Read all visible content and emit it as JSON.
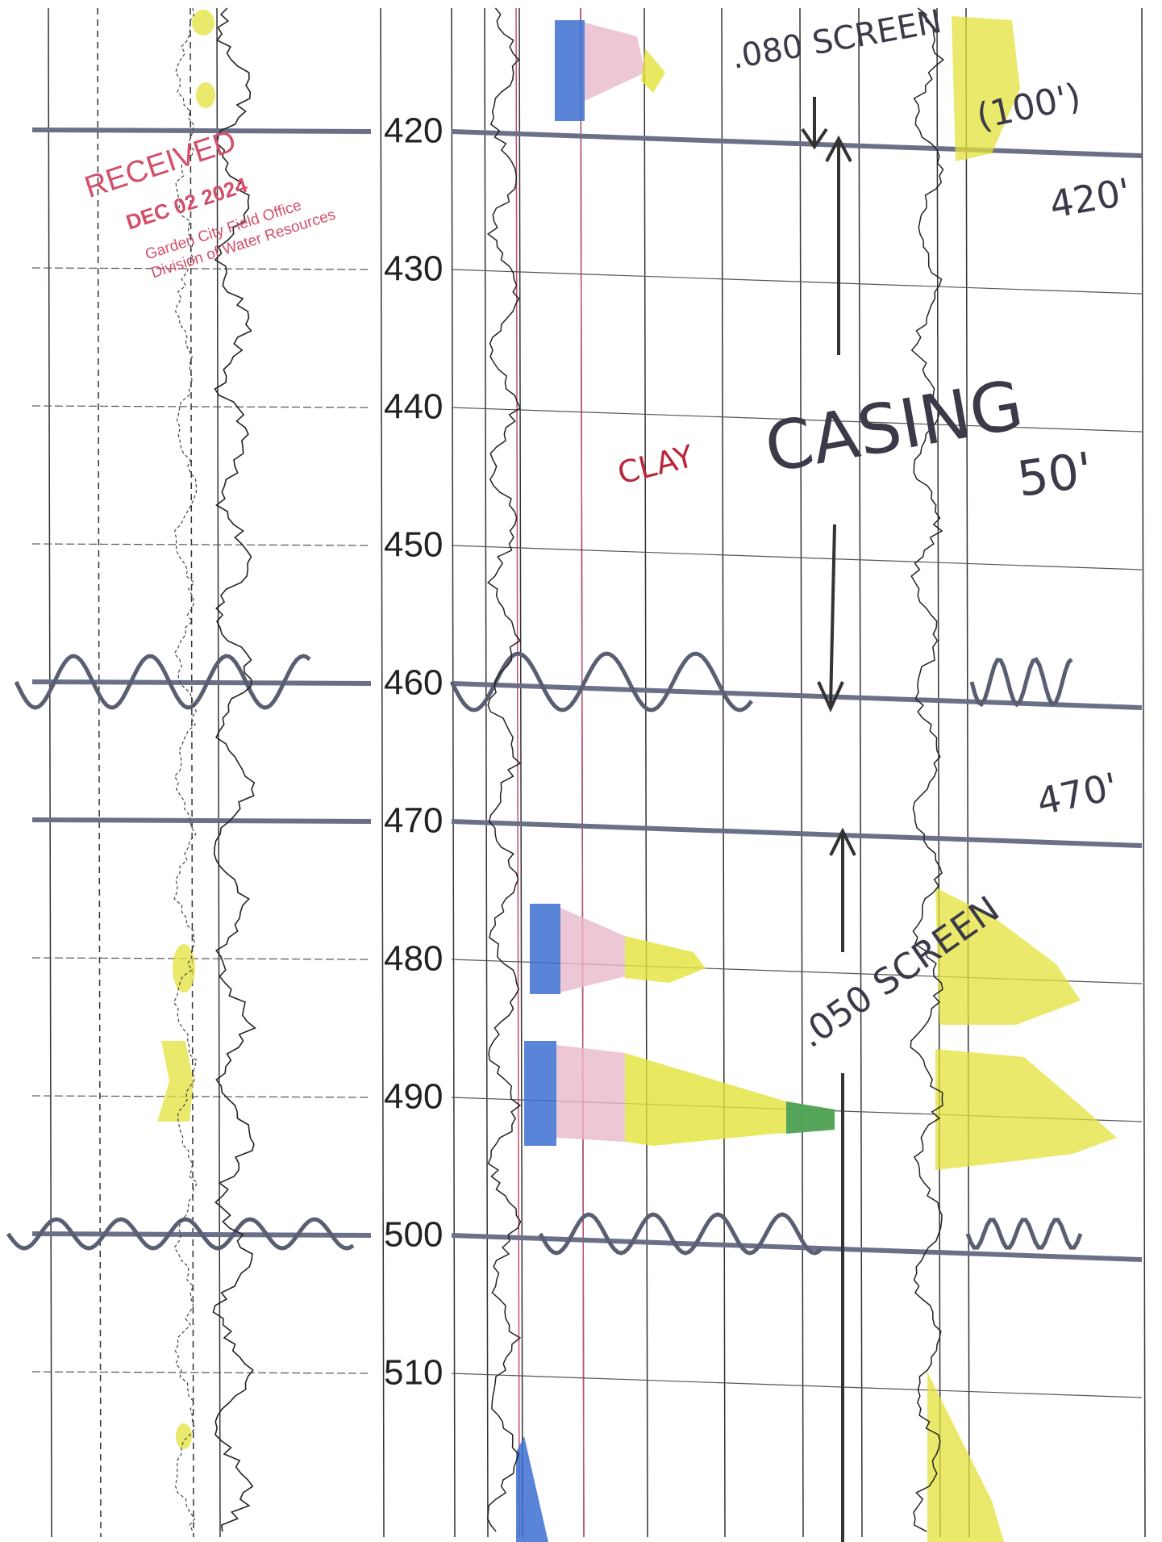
{
  "depth_labels": [
    420,
    430,
    440,
    450,
    460,
    470,
    480,
    490,
    500,
    510
  ],
  "annotations": {
    "upper_screen": ".080 SCREEN",
    "upper_screen_length": "(100')",
    "upper_depth": "420'",
    "clay": "CLAY",
    "casing": "CASING",
    "casing_length": "50'",
    "lower_depth": "470'",
    "lower_screen": ".050 SCREEN"
  },
  "stamp": {
    "title": "RECEIVED",
    "date": "DEC 02 2024",
    "office": "Garden City Field Office",
    "division": "Division of Water Resources"
  }
}
